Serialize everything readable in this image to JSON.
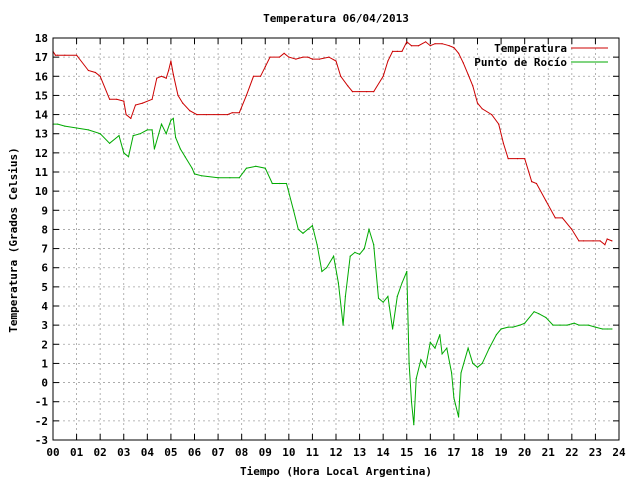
{
  "chart_data": {
    "type": "line",
    "title": "Temperatura 06/04/2013",
    "xlabel": "Tiempo (Hora Local Argentina)",
    "ylabel": "Temperatura (Grados Celsius)",
    "xlim": [
      0,
      24
    ],
    "ylim": [
      -3,
      18
    ],
    "x_ticks": [
      "00",
      "01",
      "02",
      "03",
      "04",
      "05",
      "06",
      "07",
      "08",
      "09",
      "10",
      "11",
      "12",
      "13",
      "14",
      "15",
      "16",
      "17",
      "18",
      "19",
      "20",
      "21",
      "22",
      "23",
      "24"
    ],
    "y_ticks": [
      -3,
      -2,
      -1,
      0,
      1,
      2,
      3,
      4,
      5,
      6,
      7,
      8,
      9,
      10,
      11,
      12,
      13,
      14,
      15,
      16,
      17,
      18
    ],
    "grid": true,
    "legend_position": "top-right",
    "series": [
      {
        "name": "Temperatura",
        "color": "#cc0000",
        "x": [
          0.0,
          0.1,
          0.2,
          0.5,
          1.0,
          1.5,
          1.8,
          2.0,
          2.4,
          2.7,
          3.0,
          3.1,
          3.3,
          3.5,
          3.8,
          4.2,
          4.4,
          4.6,
          4.8,
          4.9,
          5.0,
          5.1,
          5.3,
          5.5,
          5.8,
          6.1,
          6.5,
          7.0,
          7.4,
          7.6,
          7.9,
          8.2,
          8.5,
          8.8,
          9.0,
          9.2,
          9.6,
          9.8,
          10.0,
          10.3,
          10.6,
          10.8,
          11.0,
          11.3,
          11.7,
          12.0,
          12.2,
          12.5,
          12.7,
          13.0,
          13.3,
          13.6,
          14.0,
          14.2,
          14.4,
          14.6,
          14.8,
          15.0,
          15.2,
          15.5,
          15.8,
          16.0,
          16.2,
          16.5,
          16.8,
          17.0,
          17.2,
          17.4,
          17.6,
          17.8,
          18.0,
          18.2,
          18.6,
          18.9,
          19.1,
          19.3,
          19.7,
          20.0,
          20.3,
          20.5,
          20.9,
          21.3,
          21.6,
          22.0,
          22.3,
          22.5,
          22.9,
          23.2,
          23.4,
          23.5,
          23.7
        ],
        "values": [
          17.3,
          17.1,
          17.1,
          17.1,
          17.1,
          16.3,
          16.2,
          16.0,
          14.8,
          14.8,
          14.7,
          14.0,
          13.8,
          14.5,
          14.6,
          14.8,
          15.9,
          16.0,
          15.9,
          16.3,
          16.8,
          16.1,
          15.0,
          14.6,
          14.2,
          14.0,
          14.0,
          14.0,
          14.0,
          14.1,
          14.1,
          15.0,
          16.0,
          16.0,
          16.5,
          17.0,
          17.0,
          17.2,
          17.0,
          16.9,
          17.0,
          17.0,
          16.9,
          16.9,
          17.0,
          16.8,
          16.0,
          15.5,
          15.2,
          15.2,
          15.2,
          15.2,
          16.0,
          16.8,
          17.3,
          17.3,
          17.3,
          17.8,
          17.6,
          17.6,
          17.8,
          17.6,
          17.7,
          17.7,
          17.6,
          17.5,
          17.2,
          16.7,
          16.1,
          15.5,
          14.6,
          14.3,
          14.0,
          13.5,
          12.5,
          11.7,
          11.7,
          11.7,
          10.5,
          10.4,
          9.5,
          8.6,
          8.6,
          8.0,
          7.4,
          7.4,
          7.4,
          7.4,
          7.2,
          7.5,
          7.4
        ]
      },
      {
        "name": "Punto de Rocío",
        "color": "#00aa00",
        "x": [
          0.0,
          0.2,
          0.5,
          1.0,
          1.5,
          2.0,
          2.4,
          2.8,
          3.0,
          3.2,
          3.4,
          3.7,
          4.0,
          4.2,
          4.3,
          4.6,
          4.8,
          5.0,
          5.1,
          5.2,
          5.4,
          5.6,
          5.9,
          6.0,
          6.3,
          7.0,
          7.5,
          7.9,
          8.2,
          8.6,
          9.0,
          9.3,
          9.6,
          9.9,
          10.2,
          10.4,
          10.6,
          10.8,
          11.0,
          11.2,
          11.4,
          11.6,
          11.9,
          12.1,
          12.3,
          12.4,
          12.6,
          12.8,
          13.0,
          13.2,
          13.4,
          13.6,
          13.8,
          14.0,
          14.2,
          14.4,
          14.6,
          14.8,
          15.0,
          15.1,
          15.2,
          15.3,
          15.4,
          15.6,
          15.8,
          16.0,
          16.2,
          16.4,
          16.5,
          16.7,
          16.9,
          17.0,
          17.2,
          17.3,
          17.6,
          17.8,
          18.0,
          18.2,
          18.5,
          18.8,
          19.0,
          19.3,
          19.5,
          19.8,
          20.0,
          20.4,
          20.6,
          20.9,
          21.2,
          21.5,
          21.8,
          22.1,
          22.3,
          22.7,
          23.0,
          23.3,
          23.5,
          23.7
        ],
        "values": [
          13.5,
          13.5,
          13.4,
          13.3,
          13.2,
          13.0,
          12.5,
          12.9,
          12.0,
          11.8,
          12.9,
          13.0,
          13.2,
          13.2,
          12.2,
          13.5,
          13.0,
          13.7,
          13.8,
          12.8,
          12.2,
          11.8,
          11.2,
          10.9,
          10.8,
          10.7,
          10.7,
          10.7,
          11.2,
          11.3,
          11.2,
          10.4,
          10.4,
          10.4,
          9.0,
          8.0,
          7.8,
          8.0,
          8.2,
          7.2,
          5.8,
          6.0,
          6.6,
          5.2,
          3.0,
          4.5,
          6.6,
          6.8,
          6.7,
          7.0,
          8.0,
          7.2,
          4.4,
          4.2,
          4.5,
          2.8,
          4.5,
          5.2,
          5.8,
          1.0,
          -1.0,
          -2.2,
          0.2,
          1.2,
          0.8,
          2.1,
          1.8,
          2.5,
          1.5,
          1.8,
          0.5,
          -0.8,
          -1.8,
          0.5,
          1.8,
          1.0,
          0.8,
          1.0,
          1.8,
          2.5,
          2.8,
          2.9,
          2.9,
          3.0,
          3.1,
          3.7,
          3.6,
          3.4,
          3.0,
          3.0,
          3.0,
          3.1,
          3.0,
          3.0,
          2.9,
          2.8,
          2.8,
          2.8
        ]
      }
    ]
  }
}
